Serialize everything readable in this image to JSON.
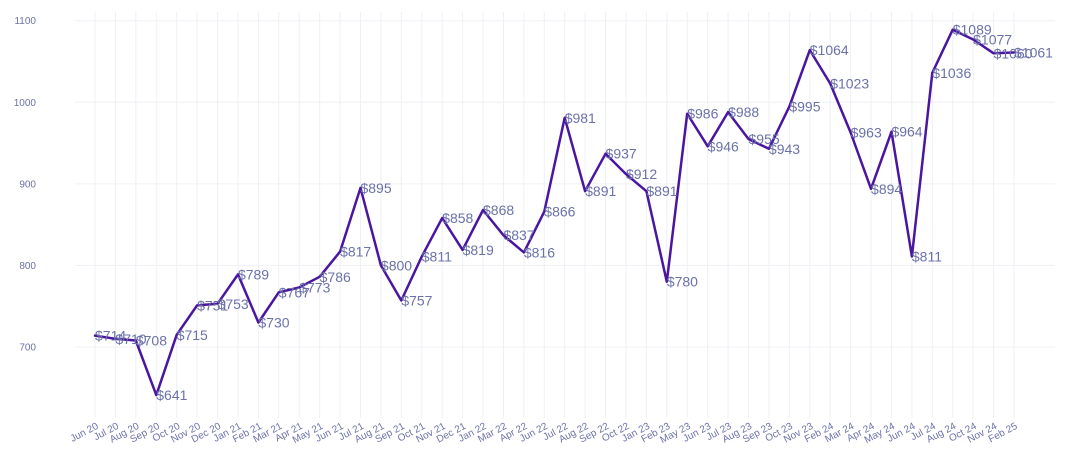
{
  "chart_data": {
    "type": "line",
    "title": "",
    "xlabel": "",
    "ylabel": "",
    "ylim": [
      620,
      1115
    ],
    "grid": true,
    "legend": "none",
    "x": [
      "Jun 20",
      "Jul 20",
      "Aug 20",
      "Sep 20",
      "Oct 20",
      "Nov 20",
      "Dec 20",
      "Jan 21",
      "Feb 21",
      "Mar 21",
      "Apr 21",
      "May 21",
      "Jun 21",
      "Jul 21",
      "Aug 21",
      "Sep 21",
      "Oct 21",
      "Nov 21",
      "Dec 21",
      "Jan 22",
      "Mar 22",
      "Apr 22",
      "Jun 22",
      "Jul 22",
      "Aug 22",
      "Sep 22",
      "Oct 22",
      "Jan 23",
      "Feb 23",
      "May 23",
      "Jun 23",
      "Jul 23",
      "Aug 23",
      "Sep 23",
      "Oct 23",
      "Nov 23",
      "Feb 24",
      "Mar 24",
      "Apr 24",
      "May 24",
      "Jun 24",
      "Jul 24",
      "Aug 24",
      "Oct 24",
      "Nov 24",
      "Feb 25"
    ],
    "x_positions": [
      0,
      1,
      2,
      3,
      4,
      5,
      6,
      7,
      8,
      9,
      10,
      11,
      12,
      13,
      14,
      15,
      16,
      17,
      18,
      19,
      20,
      21,
      22,
      23,
      24,
      25,
      26,
      27,
      28,
      29,
      30,
      31,
      32,
      33,
      34,
      35,
      36,
      37,
      38,
      39,
      40,
      41,
      42,
      43,
      44,
      45
    ],
    "x_ticks": [
      "Jun 20",
      "Jul 20",
      "Aug 20",
      "Sep 20",
      "Oct 20",
      "Nov 20",
      "Dec 20",
      "Jan 21",
      "Feb 21",
      "Mar 21",
      "Apr 21",
      "May 21",
      "Jun 21",
      "Jul 21",
      "Aug 21",
      "Sep 21",
      "Oct 21",
      "Nov 21",
      "Dec 21",
      "Jan 22",
      "Mar 22",
      "Apr 22",
      "Jun 22",
      "Jul 22",
      "Aug 22",
      "Sep 22",
      "Oct 22",
      "Jan 23",
      "Feb 23",
      "May 23",
      "Jun 23",
      "Jul 23",
      "Aug 23",
      "Sep 23",
      "Oct 23",
      "Nov 23",
      "Feb 24",
      "Mar 24",
      "Apr 24",
      "May 24",
      "Jun 24",
      "Jul 24",
      "Aug 24",
      "Oct 24",
      "Nov 24",
      "Feb 25"
    ],
    "y_ticks": [
      700,
      800,
      900,
      1000,
      1100
    ],
    "series": [
      {
        "values": [
          714,
          710,
          708,
          641,
          715,
          751,
          753,
          789,
          730,
          767,
          773,
          786,
          817,
          895,
          800,
          757,
          811,
          858,
          819,
          868,
          837,
          816,
          866,
          981,
          891,
          937,
          912,
          891,
          780,
          986,
          946,
          988,
          955,
          943,
          995,
          1064,
          1023,
          963,
          894,
          964,
          811,
          1036,
          1089,
          1077,
          1060,
          1061
        ],
        "labels": [
          "$714",
          "$710",
          "$708",
          "$641",
          "$715",
          "$751",
          "$753",
          "$789",
          "$730",
          "$767",
          "$773",
          "$786",
          "$817",
          "$895",
          "$800",
          "$757",
          "$811",
          "$858",
          "$819",
          "$868",
          "$837",
          "$816",
          "$866",
          "$981",
          "$891",
          "$937",
          "$912",
          "$891",
          "$780",
          "$986",
          "$946",
          "$988",
          "$955",
          "$943",
          "$995",
          "$1064",
          "$1023",
          "$963",
          "$894",
          "$964",
          "$811",
          "$1036",
          "$1089",
          "$1077",
          "$1060",
          "$1061"
        ]
      }
    ],
    "colors": {
      "line": "#4a16a0",
      "label": "#6b72a8",
      "tick": "#6b72a8",
      "grid": "#eef0f5"
    }
  }
}
